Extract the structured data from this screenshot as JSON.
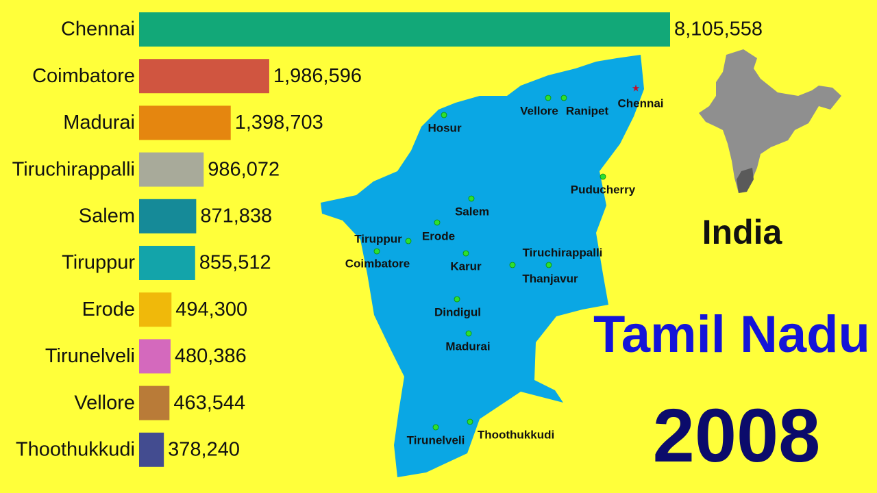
{
  "chart_data": {
    "type": "bar",
    "orientation": "horizontal",
    "categories": [
      "Chennai",
      "Coimbatore",
      "Madurai",
      "Tiruchirappalli",
      "Salem",
      "Tiruppur",
      "Erode",
      "Tirunelveli",
      "Vellore",
      "Thoothukkudi"
    ],
    "values": [
      8105558,
      1986596,
      1398703,
      986072,
      871838,
      855512,
      494300,
      480386,
      463544,
      378240
    ],
    "value_labels": [
      "8,105,558",
      "1,986,596",
      "1,398,703",
      "986,072",
      "871,838",
      "855,512",
      "494,300",
      "480,386",
      "463,544",
      "378,240"
    ],
    "colors": [
      "#12a878",
      "#d05540",
      "#e5860f",
      "#a8aa9a",
      "#158a98",
      "#13a4aa",
      "#f0b90a",
      "#d469bd",
      "#b97b38",
      "#434c90"
    ]
  },
  "map": {
    "cities": [
      "Hosur",
      "Vellore",
      "Ranipet",
      "Chennai",
      "Puducherry",
      "Salem",
      "Erode",
      "Tiruppur",
      "Coimbatore",
      "Karur",
      "Tiruchirappalli",
      "Thanjavur",
      "Dindigul",
      "Madurai",
      "Tirunelveli",
      "Thoothukkudi"
    ]
  },
  "inset_label": "India",
  "region": "Tamil Nadu",
  "year": "2008"
}
